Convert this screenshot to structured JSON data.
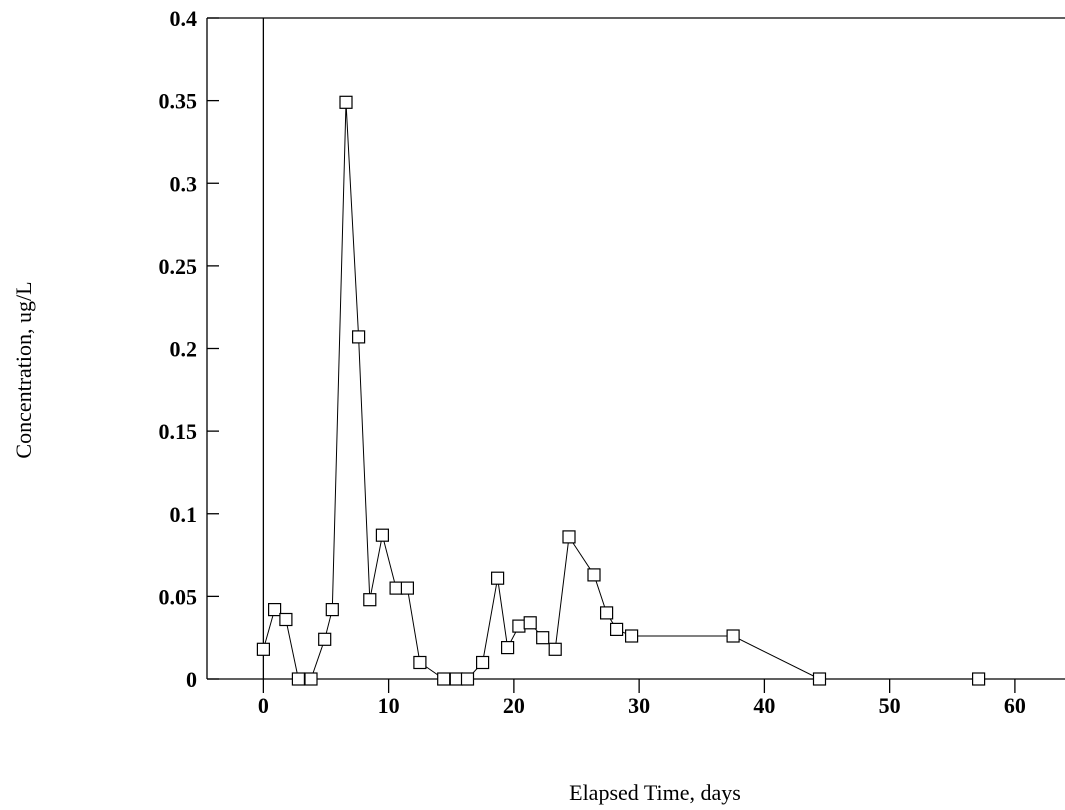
{
  "chart_data": {
    "type": "line",
    "xlabel": "Elapsed Time, days",
    "ylabel": "Concentration, ug/L",
    "xlim": [
      -4.5,
      64
    ],
    "ylim": [
      0,
      0.4
    ],
    "xticks": [
      0,
      10,
      20,
      30,
      40,
      50,
      60
    ],
    "yticks": [
      0,
      0.05,
      0.1,
      0.15,
      0.2,
      0.25,
      0.3,
      0.35,
      0.4
    ],
    "ytick_labels": [
      "0",
      "0.05",
      "0.1",
      "0.15",
      "0.2",
      "0.25",
      "0.3",
      "0.35",
      "0.4"
    ],
    "marker": "open-square",
    "series": [
      {
        "x": [
          0,
          0.9,
          1.8,
          2.8,
          3.8,
          4.9,
          5.5,
          6.6,
          7.6,
          8.5,
          9.5,
          10.6,
          11.5,
          12.5,
          14.4,
          15.4,
          16.3,
          17.5,
          18.7,
          19.5,
          20.4,
          21.3,
          22.3,
          23.3,
          24.4,
          26.4,
          27.4,
          28.2,
          29.4,
          37.5,
          44.4,
          57.1
        ],
        "y": [
          0.018,
          0.042,
          0.036,
          0.0,
          0.0,
          0.024,
          0.042,
          0.349,
          0.207,
          0.048,
          0.087,
          0.055,
          0.055,
          0.01,
          0.0,
          0.0,
          0.0,
          0.01,
          0.061,
          0.019,
          0.032,
          0.034,
          0.025,
          0.018,
          0.086,
          0.063,
          0.04,
          0.03,
          0.026,
          0.026,
          0.0,
          0.0
        ]
      }
    ]
  }
}
